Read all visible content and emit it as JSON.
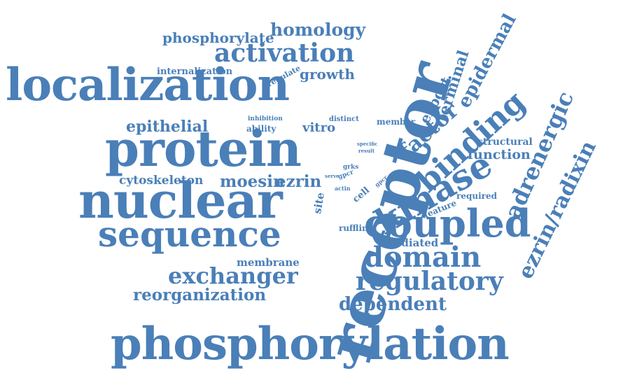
{
  "colors": {
    "word": "#4a7fb8",
    "background": "#ffffff"
  },
  "cloud": {
    "words": {
      "phosphorylation": "phosphorylation",
      "receptor": "receptor",
      "localization": "localization",
      "protein": "protein",
      "nuclear": "nuclear",
      "sequence": "sequence",
      "activation": "activation",
      "homology": "homology",
      "phosphorylate": "phosphorylate",
      "internalization": "internalization",
      "growth": "growth",
      "regulate": "regulate",
      "epithelial": "epithelial",
      "inhibition": "inhibition",
      "ability": "ability",
      "distinct": "distinct",
      "vitro": "vitro",
      "member": "member",
      "cytoskeleton": "cytoskeleton",
      "moesin": "moesin",
      "ezrin": "ezrin",
      "specific": "specific",
      "result": "result",
      "serve": "serve",
      "grks": "grks",
      "gpcr1": "gpcr",
      "gpcr2": "gpcr",
      "actin": "actin",
      "cell": "cell",
      "site": "site",
      "ruffling": "ruffling",
      "mediated": "mediated",
      "membrane": "membrane",
      "exchanger": "exchanger",
      "reorganization": "reorganization",
      "domain": "domain",
      "regulatory": "regulatory",
      "dependent": "dependent",
      "coupled": "coupled",
      "kinase": "kinase",
      "binding": "binding",
      "factor": "factor",
      "export": "export",
      "terminal": "terminal",
      "epidermal": "epidermal",
      "structural": "structural",
      "function": "function",
      "required": "required",
      "feature": "feature",
      "adrenergic": "adrenergic",
      "ezrinradixin": "ezrin/radixin"
    }
  }
}
